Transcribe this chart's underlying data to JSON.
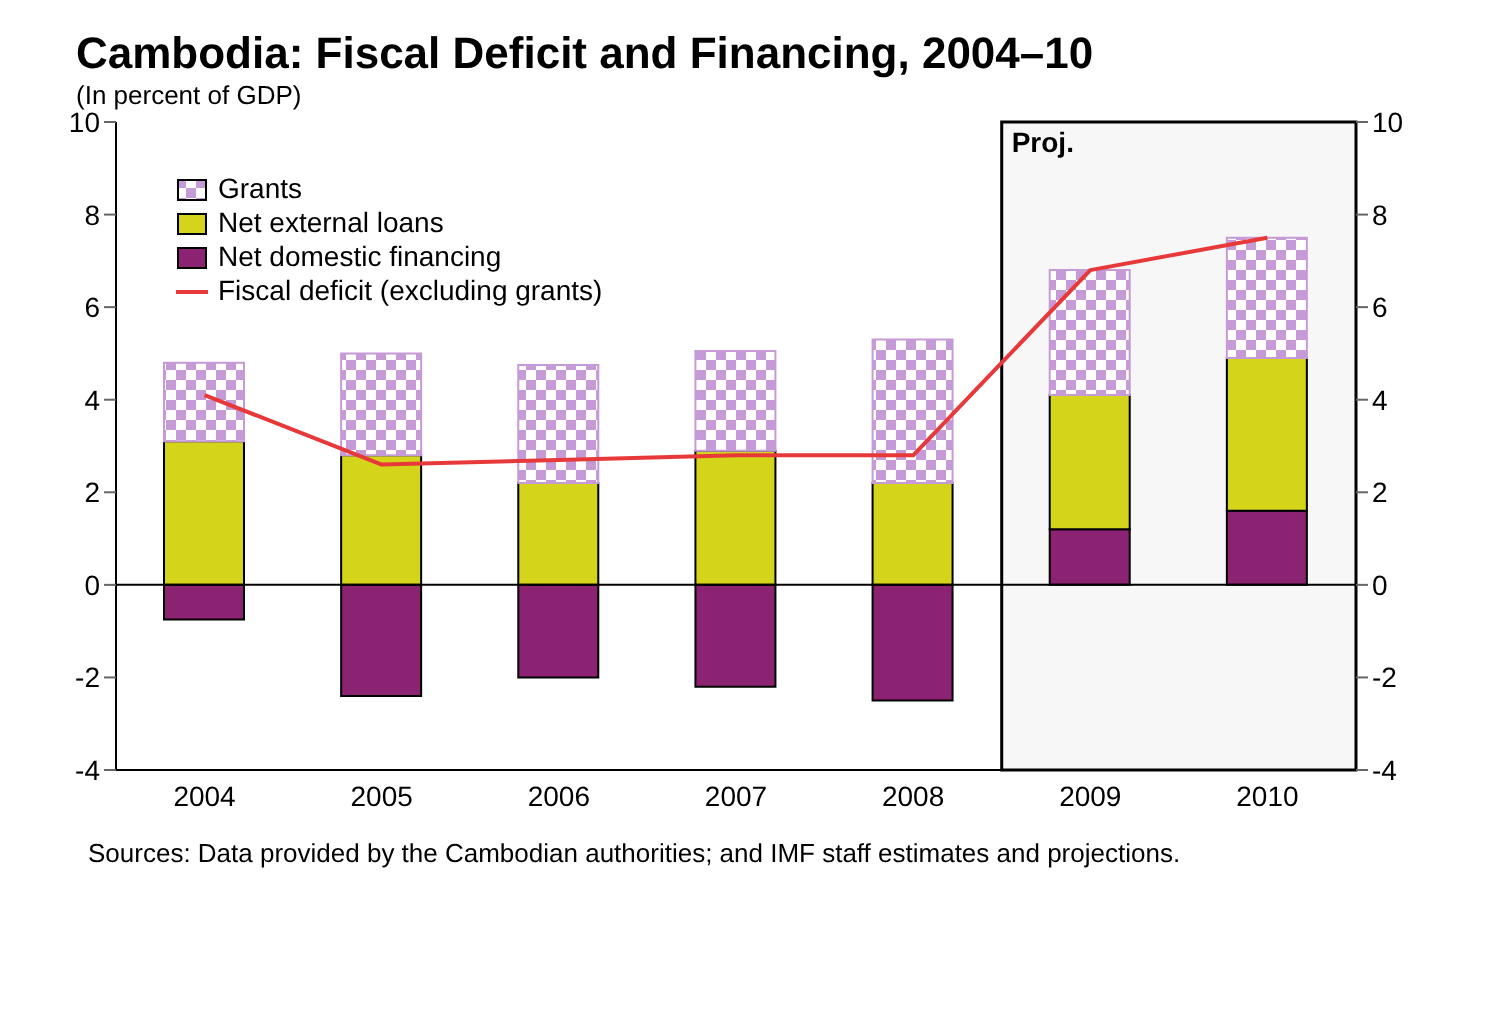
{
  "chart_data": {
    "type": "bar",
    "title": "Cambodia: Fiscal Deficit and Financing, 2004–10",
    "subtitle": "(In percent of GDP)",
    "categories": [
      "2004",
      "2005",
      "2006",
      "2007",
      "2008",
      "2009",
      "2010"
    ],
    "stacked": true,
    "series": [
      {
        "name": "Net domestic financing",
        "color": "#8b2272",
        "values": [
          -0.75,
          -2.4,
          -2.0,
          -2.2,
          -2.5,
          1.2,
          1.6
        ]
      },
      {
        "name": "Net external loans",
        "color": "#d4d41a",
        "values": [
          3.1,
          2.8,
          2.2,
          2.9,
          2.2,
          2.9,
          3.3
        ]
      },
      {
        "name": "Grants",
        "color": "#c59ad6",
        "values": [
          1.7,
          2.2,
          2.55,
          2.15,
          3.1,
          2.7,
          2.6
        ]
      },
      {
        "name": "Fiscal deficit (excluding grants)",
        "type": "line",
        "color": "#e8393a",
        "values": [
          4.1,
          2.6,
          2.7,
          2.8,
          2.8,
          6.8,
          7.5
        ]
      }
    ],
    "ylim": [
      -4,
      10
    ],
    "yticks": [
      -4,
      -2,
      0,
      2,
      4,
      6,
      8,
      10
    ],
    "y2lim": [
      -4,
      10
    ],
    "y2ticks": [
      -4,
      -2,
      0,
      2,
      4,
      6,
      8,
      10
    ],
    "bands": [
      {
        "axis": "x",
        "from": "2009",
        "to": "2010",
        "label": "Proj.",
        "color": "#000000"
      }
    ],
    "legend": "top left",
    "marker": "none",
    "annotations": [
      "Sources: Data provided by the Cambodian authorities; and IMF staff estimates and projections."
    ]
  }
}
